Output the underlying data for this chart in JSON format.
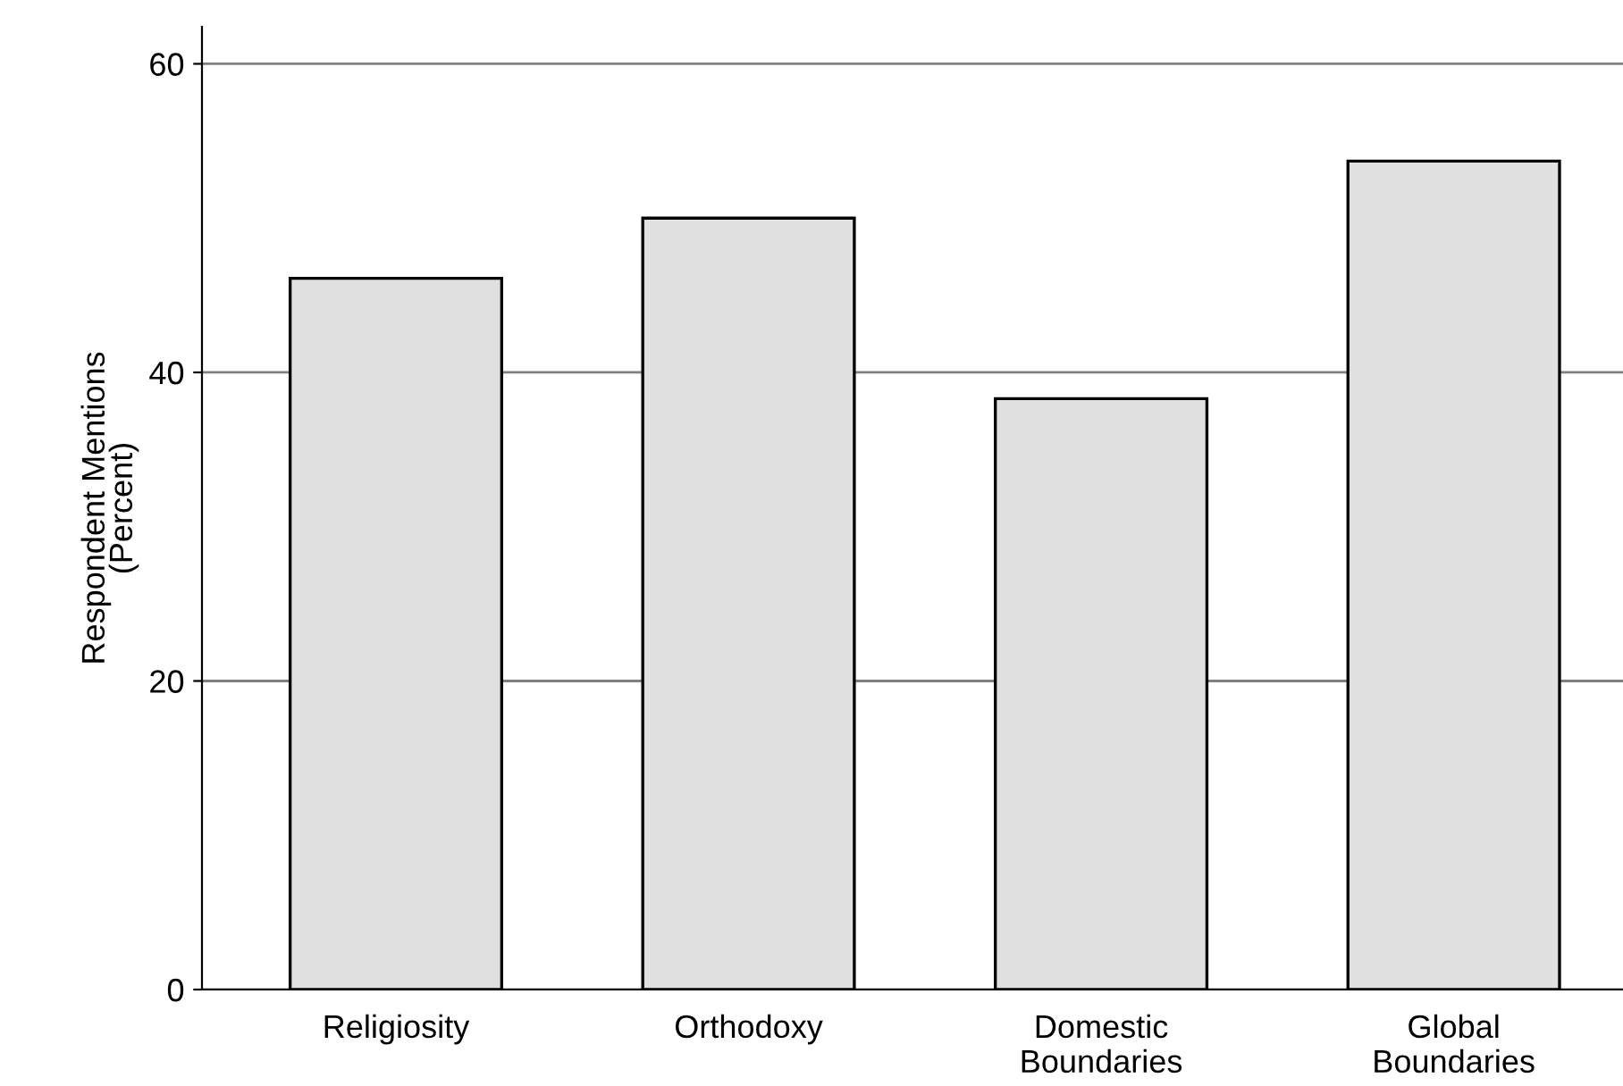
{
  "chart_data": {
    "type": "bar",
    "ylabel": "Respondent Mentions\n(Percent)",
    "categories": [
      "Religiosity",
      "Orthodoxy",
      "Domestic\nBoundaries",
      "Global\nBoundaries"
    ],
    "values": [
      46.1,
      50.0,
      38.3,
      53.7
    ],
    "color": "#e0e0e0",
    "ylim": [
      0,
      62.4
    ],
    "yticks": [
      0,
      20,
      40,
      60
    ],
    "grid": "y"
  }
}
